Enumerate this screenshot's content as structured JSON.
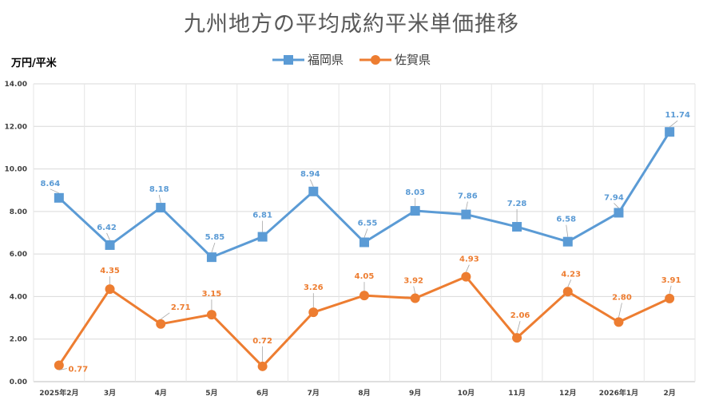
{
  "chart_data": {
    "type": "line",
    "title": "九州地方の平均成約平米単価推移",
    "ylabel": "万円/平米",
    "xlabel": "",
    "ylim": [
      0,
      14
    ],
    "yticks": [
      "0.00",
      "2.00",
      "4.00",
      "6.00",
      "8.00",
      "10.00",
      "12.00",
      "14.00"
    ],
    "categories": [
      "2025年2月",
      "3月",
      "4月",
      "5月",
      "6月",
      "7月",
      "8月",
      "9月",
      "10月",
      "11月",
      "12月",
      "2026年1月",
      "2月"
    ],
    "series": [
      {
        "name": "福岡県",
        "color": "#5B9BD5",
        "marker": "square",
        "values": [
          8.64,
          6.42,
          8.18,
          5.85,
          6.81,
          8.94,
          6.55,
          8.03,
          7.86,
          7.28,
          6.58,
          7.94,
          11.74
        ],
        "labels": [
          "8.64",
          "6.42",
          "8.18",
          "5.85",
          "6.81",
          "8.94",
          "6.55",
          "8.03",
          "7.86",
          "7.28",
          "6.58",
          "7.94",
          "11.74"
        ]
      },
      {
        "name": "佐賀県",
        "color": "#ED7D31",
        "marker": "circle",
        "values": [
          0.77,
          4.35,
          2.71,
          3.15,
          0.72,
          3.26,
          4.05,
          3.92,
          4.93,
          2.06,
          4.23,
          2.8,
          3.91
        ],
        "labels": [
          "0.77",
          "4.35",
          "2.71",
          "3.15",
          "0.72",
          "3.26",
          "4.05",
          "3.92",
          "4.93",
          "2.06",
          "4.23",
          "2.80",
          "3.91"
        ]
      }
    ],
    "legend": "top-center",
    "grid": true
  }
}
